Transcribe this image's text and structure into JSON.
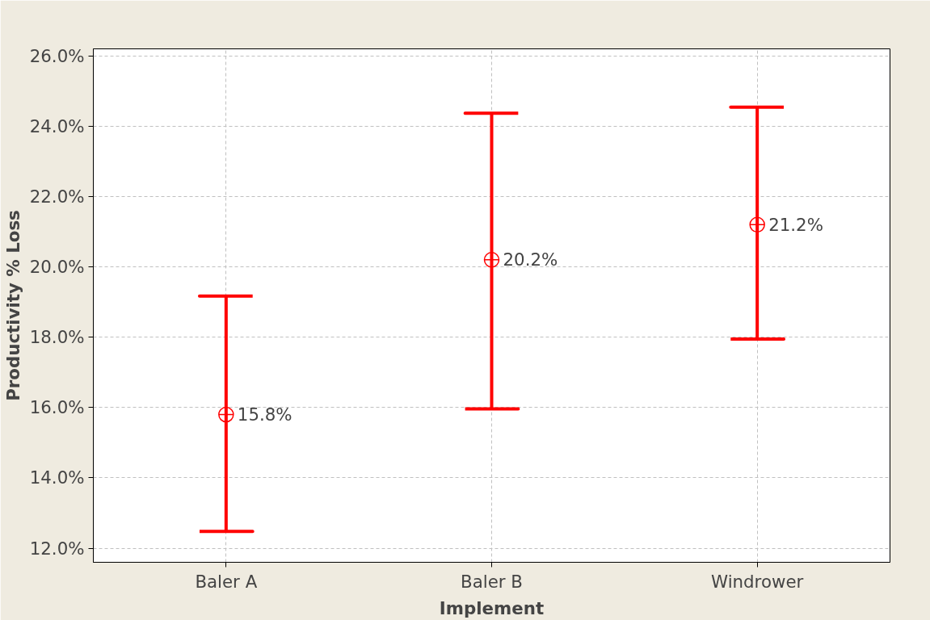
{
  "chart_data": {
    "type": "scatter",
    "xlabel": "Implement",
    "ylabel": "Productivity % Loss",
    "categories": [
      "Baler A",
      "Baler B",
      "Windrower"
    ],
    "values": [
      15.8,
      20.2,
      21.2
    ],
    "value_labels": [
      "15.8%",
      "20.2%",
      "21.2%"
    ],
    "errors": [
      [
        12.48,
        19.17
      ],
      [
        15.96,
        24.37
      ],
      [
        17.95,
        24.54
      ]
    ],
    "color": "#ff0000",
    "marker": "circle",
    "grid": true,
    "ylim": [
      11.6,
      26.2
    ],
    "yticks": [
      {
        "value": 12,
        "label": "12.0%"
      },
      {
        "value": 14,
        "label": "14.0%"
      },
      {
        "value": 16,
        "label": "16.0%"
      },
      {
        "value": 18,
        "label": "18.0%"
      },
      {
        "value": 20,
        "label": "20.0%"
      },
      {
        "value": 22,
        "label": "22.0%"
      },
      {
        "value": 24,
        "label": "24.0%"
      },
      {
        "value": 26,
        "label": "26.0%"
      }
    ]
  }
}
